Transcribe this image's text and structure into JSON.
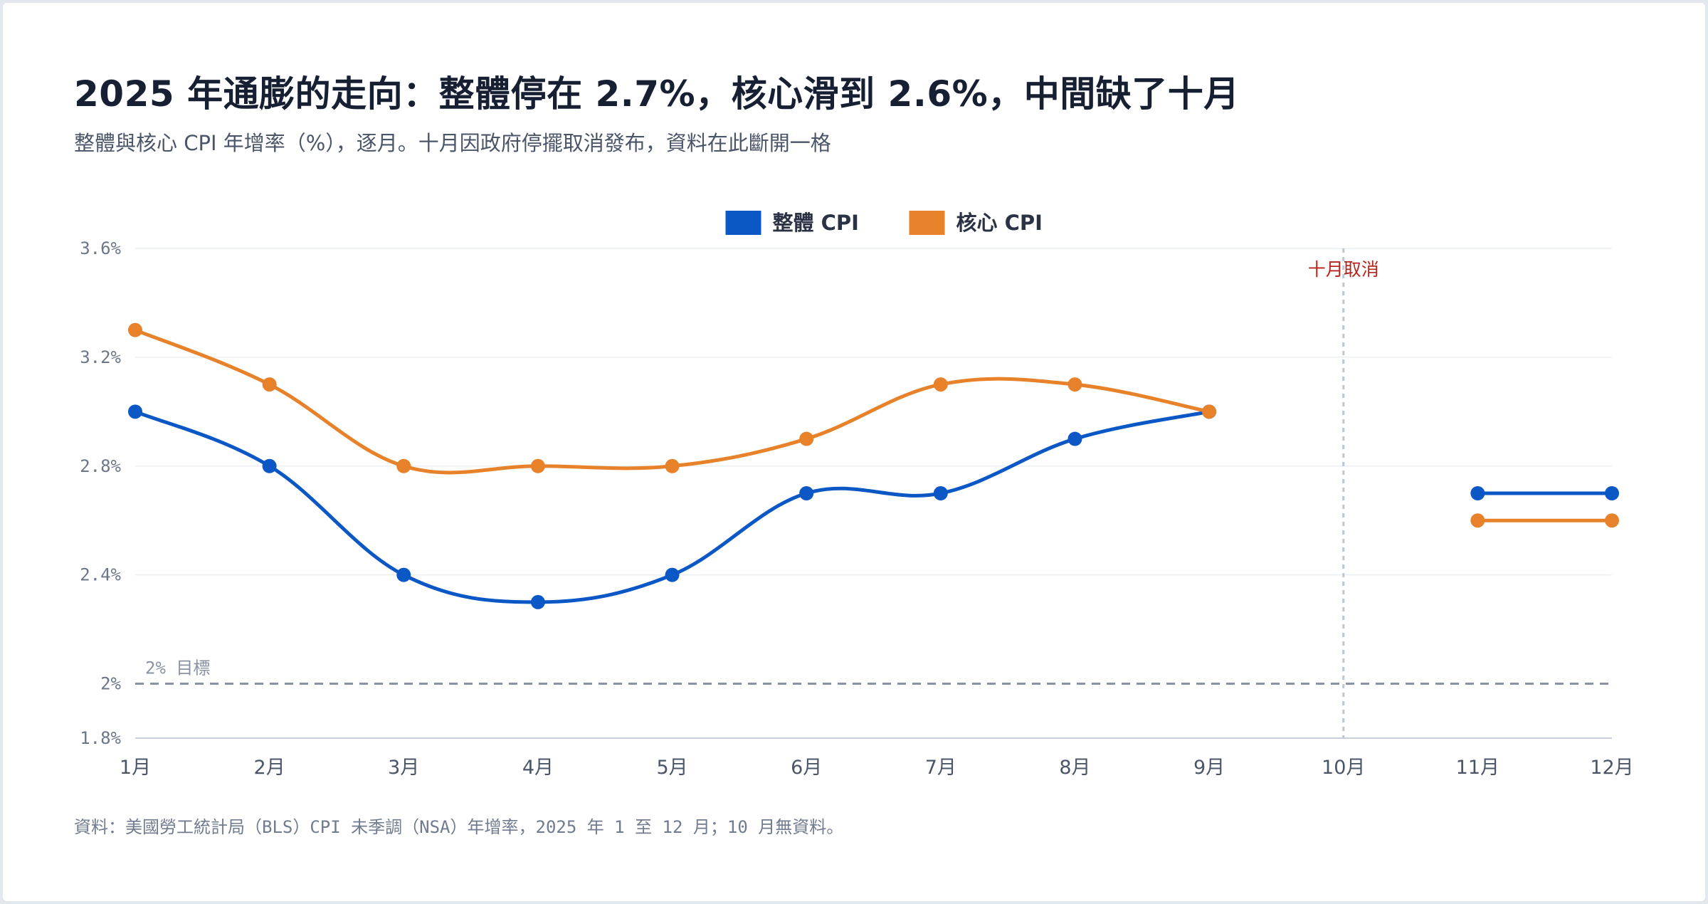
{
  "title": "2025 年通膨的走向：整體停在 2.7%，核心滑到 2.6%，中間缺了十月",
  "subtitle": "整體與核心 CPI 年增率（%），逐月。十月因政府停擺取消發布，資料在此斷開一格",
  "source": "資料：美國勞工統計局（BLS）CPI 未季調（NSA）年增率，2025 年 1 至 12 月；10 月無資料。",
  "chart_data": {
    "type": "line",
    "categories": [
      "1月",
      "2月",
      "3月",
      "4月",
      "5月",
      "6月",
      "7月",
      "8月",
      "9月",
      "10月",
      "11月",
      "12月"
    ],
    "series": [
      {
        "name": "整體 CPI",
        "color": "#0b57c5",
        "values": [
          3.0,
          2.8,
          2.4,
          2.3,
          2.4,
          2.7,
          2.7,
          2.9,
          3.0,
          null,
          2.7,
          2.7
        ]
      },
      {
        "name": "核心 CPI",
        "color": "#e8822a",
        "values": [
          3.3,
          3.1,
          2.8,
          2.8,
          2.8,
          2.9,
          3.1,
          3.1,
          3.0,
          null,
          2.6,
          2.6
        ]
      }
    ],
    "yticks": [
      1.8,
      2,
      2.4,
      2.8,
      3.2,
      3.6
    ],
    "ytick_labels": [
      "1.8%",
      "2%",
      "2.4%",
      "2.8%",
      "3.2%",
      "3.6%"
    ],
    "ylim": [
      1.8,
      3.6
    ],
    "grid": true,
    "legend_position": "top-center",
    "reference_line": {
      "value": 2,
      "label": "2% 目標",
      "color": "#8a93a3"
    },
    "annotation": {
      "category": "10月",
      "label": "十月取消",
      "color": "#b3261e"
    }
  }
}
